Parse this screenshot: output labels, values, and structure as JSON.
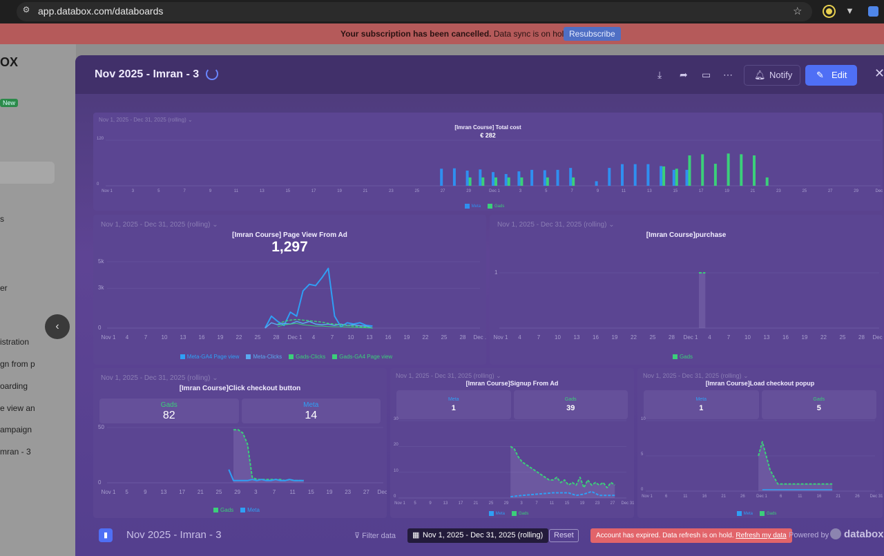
{
  "browser": {
    "url": "app.databox.com/databoards"
  },
  "banner": {
    "text_bold": "Your subscription has been cancelled.",
    "text": " Data sync is on hold.",
    "button": "Resubscribe"
  },
  "background": {
    "logo": "OX",
    "new_badge": "New",
    "items": [
      "s",
      "er",
      "istration",
      "gn from p",
      "oarding",
      "e view an",
      "ampaign",
      "mran - 3"
    ]
  },
  "modal": {
    "title": "Nov 2025 - Imran - 3",
    "notify_label": "Notify",
    "edit_label": "Edit",
    "footer": {
      "title": "Nov 2025 - Imran - 3",
      "filter_label": "Filter data",
      "date_range": "Nov 1, 2025 - Dec 31, 2025 (rolling)",
      "reset_label": "Reset",
      "expired_text": "Account has expired. Data refresh is on hold.",
      "refresh_link": "Refresh my data",
      "powered_by": "Powered by",
      "brand": "databox"
    }
  },
  "chart_data": [
    {
      "id": "total-cost",
      "type": "bar",
      "date_range": "Nov 1, 2025 - Dec 31, 2025 (rolling)",
      "title": "[Imran Course] Total cost",
      "value": "€ 282",
      "ytick_labels": [
        "120",
        "0"
      ],
      "ylim": [
        0,
        120
      ],
      "x_labels": [
        "Nov 1",
        "3",
        "5",
        "7",
        "9",
        "11",
        "13",
        "15",
        "17",
        "19",
        "21",
        "23",
        "25",
        "27",
        "29",
        "Dec 1",
        "3",
        "5",
        "7",
        "9",
        "11",
        "13",
        "15",
        "17",
        "19",
        "21",
        "23",
        "25",
        "27",
        "29",
        "Dec 31"
      ],
      "series": [
        {
          "name": "Meta",
          "color": "#2f8ff0",
          "values": [
            0,
            0,
            0,
            0,
            0,
            0,
            0,
            0,
            0,
            0,
            0,
            0,
            0,
            0,
            0,
            0,
            0,
            0,
            0,
            0,
            0,
            0,
            0,
            0,
            0,
            0,
            0,
            0,
            0,
            0,
            0,
            0,
            0,
            0,
            0,
            0,
            0,
            0,
            0,
            0,
            0,
            0,
            0,
            0,
            0,
            0,
            0,
            0,
            0,
            0,
            0,
            0,
            0,
            0,
            0,
            0,
            0,
            0,
            0,
            0,
            0
          ]
        },
        {
          "name": "Gads",
          "color": "#3bcf7a",
          "values": []
        }
      ],
      "meta_values": [
        0,
        0,
        0,
        0,
        0,
        0,
        0,
        0,
        0,
        0,
        0,
        0,
        0,
        0,
        0,
        0,
        0,
        0,
        0,
        0,
        0,
        0,
        0,
        0,
        0,
        0,
        0,
        0,
        0,
        0,
        0,
        0,
        0,
        0,
        0,
        0,
        0,
        0,
        0,
        0,
        0,
        0,
        0,
        0,
        0,
        0,
        0,
        0,
        0,
        0,
        0,
        0,
        0,
        0,
        0,
        0,
        0,
        0,
        0,
        0,
        0
      ],
      "meta": [
        0,
        0,
        0,
        0,
        0,
        0,
        0,
        0,
        0,
        0,
        0,
        0,
        0,
        0,
        0,
        0,
        0,
        0,
        0,
        0,
        0,
        0,
        0,
        0,
        0,
        0,
        0,
        0,
        0,
        0,
        0,
        0,
        0,
        0,
        0,
        0,
        0,
        0,
        0,
        0,
        0,
        0,
        0,
        0,
        0,
        0,
        0,
        0,
        0,
        0,
        0,
        0,
        0,
        0,
        0,
        0,
        0,
        0,
        0,
        0,
        0
      ],
      "legend": [
        "Meta",
        "Gads"
      ]
    },
    {
      "id": "page-view",
      "type": "line",
      "date_range": "Nov 1, 2025 - Dec 31, 2025 (rolling)",
      "title": "[Imran Course] Page View From Ad",
      "value": "1,297",
      "ytick_labels": [
        "5k",
        "3k",
        "0"
      ],
      "ylim": [
        0,
        5000
      ],
      "x_labels": [
        "Nov 1",
        "4",
        "7",
        "10",
        "13",
        "16",
        "19",
        "22",
        "25",
        "28",
        "Dec 1",
        "4",
        "7",
        "10",
        "13",
        "16",
        "19",
        "22",
        "25",
        "28",
        "Dec ..."
      ],
      "series": [
        {
          "name": "Meta-GA4 Page view",
          "color": "#2f9ff5",
          "values": [
            0,
            0,
            0,
            0,
            0,
            0,
            0,
            0,
            0,
            0,
            0,
            0,
            0,
            0,
            0,
            0,
            0,
            0,
            0,
            0,
            0,
            0,
            0,
            0,
            0,
            0,
            0,
            0,
            0,
            0,
            0,
            0,
            0,
            0,
            0,
            0,
            0,
            0,
            0,
            0,
            0,
            0,
            0,
            0,
            0,
            0,
            0,
            0,
            0,
            0,
            0,
            0,
            0,
            0,
            0,
            0,
            0,
            0,
            0,
            0,
            0
          ]
        },
        {
          "name": "Meta-Clicks",
          "color": "#5aa9f0",
          "values": []
        },
        {
          "name": "Gads-Clicks",
          "color": "#3bcf7a",
          "values": []
        },
        {
          "name": "Gads-GA4 Page view",
          "color": "#3bcf7a",
          "values": []
        }
      ]
    },
    {
      "id": "purchase",
      "type": "area",
      "date_range": "Nov 1, 2025 - Dec 31, 2025 (rolling)",
      "title": "[Imran Course]purchase",
      "ytick_labels": [
        "1"
      ],
      "ylim": [
        0,
        1.2
      ],
      "x_labels": [
        "Nov 1",
        "4",
        "7",
        "10",
        "13",
        "16",
        "19",
        "22",
        "25",
        "28",
        "Dec 1",
        "4",
        "7",
        "10",
        "13",
        "16",
        "19",
        "22",
        "25",
        "28",
        "Dec ..."
      ],
      "series": [
        {
          "name": "Gads",
          "color": "#3bcf7a",
          "values": []
        }
      ]
    },
    {
      "id": "checkout",
      "type": "line",
      "date_range": "Nov 1, 2025 - Dec 31, 2025 (rolling)",
      "title": "[Imran Course]Click checkout button",
      "kpis": [
        {
          "label": "Gads",
          "value": "82",
          "color": "#3bcf7a"
        },
        {
          "label": "Meta",
          "value": "14",
          "color": "#2f9ff5"
        }
      ],
      "ytick_labels": [
        "50",
        "0"
      ],
      "ylim": [
        0,
        50
      ],
      "x_labels": [
        "Nov 1",
        "5",
        "9",
        "13",
        "17",
        "21",
        "25",
        "29",
        "3",
        "7",
        "11",
        "15",
        "19",
        "23",
        "27",
        "Dec..."
      ],
      "series": [
        {
          "name": "Gads",
          "color": "#3bcf7a",
          "values": []
        },
        {
          "name": "Meta",
          "color": "#2f9ff5",
          "values": []
        }
      ]
    },
    {
      "id": "signup",
      "type": "line",
      "date_range": "Nov 1, 2025 - Dec 31, 2025 (rolling)",
      "title": "[Imran Course]Signup From Ad",
      "kpis": [
        {
          "label": "Meta",
          "value": "1",
          "color": "#2f9ff5"
        },
        {
          "label": "Gads",
          "value": "39",
          "color": "#3bcf7a"
        }
      ],
      "ytick_labels": [
        "30",
        "20",
        "10",
        "0"
      ],
      "ylim": [
        0,
        30
      ],
      "x_labels": [
        "Nov 1",
        "5",
        "9",
        "13",
        "17",
        "21",
        "25",
        "29",
        "3",
        "7",
        "11",
        "15",
        "19",
        "23",
        "27",
        "Dec 31"
      ],
      "series": [
        {
          "name": "Meta",
          "color": "#2f9ff5",
          "values": []
        },
        {
          "name": "Gads",
          "color": "#3bcf7a",
          "values": []
        }
      ]
    },
    {
      "id": "load-popup",
      "type": "line",
      "date_range": "Nov 1, 2025 - Dec 31, 2025 (rolling)",
      "title": "[Imran Course]Load checkout popup",
      "kpis": [
        {
          "label": "Meta",
          "value": "1",
          "color": "#2f9ff5"
        },
        {
          "label": "Gads",
          "value": "5",
          "color": "#3bcf7a"
        }
      ],
      "ytick_labels": [
        "10",
        "5",
        "0"
      ],
      "ylim": [
        0,
        10
      ],
      "x_labels": [
        "Nov 1",
        "6",
        "11",
        "16",
        "21",
        "26",
        "Dec 1",
        "6",
        "11",
        "16",
        "21",
        "26",
        "Dec 31"
      ],
      "series": [
        {
          "name": "Meta",
          "color": "#2f9ff5",
          "values": []
        },
        {
          "name": "Gads",
          "color": "#3bcf7a",
          "values": []
        }
      ]
    }
  ]
}
